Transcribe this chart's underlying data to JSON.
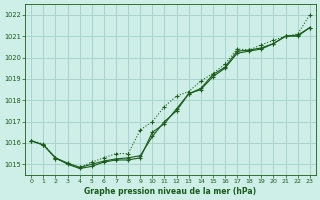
{
  "title": "Graphe pression niveau de la mer (hPa)",
  "bg_color": "#ceeee8",
  "grid_color": "#aad4ce",
  "line_color": "#1a5c1a",
  "xlim": [
    -0.5,
    23.5
  ],
  "ylim": [
    1014.5,
    1022.5
  ],
  "yticks": [
    1015,
    1016,
    1017,
    1018,
    1019,
    1020,
    1021,
    1022
  ],
  "xticks": [
    0,
    1,
    2,
    3,
    4,
    5,
    6,
    7,
    8,
    9,
    10,
    11,
    12,
    13,
    14,
    15,
    16,
    17,
    18,
    19,
    20,
    21,
    22,
    23
  ],
  "line1_x": [
    0,
    1,
    2,
    3,
    4,
    5,
    6,
    7,
    8,
    9,
    10,
    11,
    12,
    13,
    14,
    15,
    16,
    17,
    18,
    19,
    20,
    21,
    22,
    23
  ],
  "line1_y": [
    1016.1,
    1015.9,
    1015.3,
    1015.0,
    1014.8,
    1014.9,
    1015.1,
    1015.2,
    1015.2,
    1015.3,
    1016.5,
    1016.9,
    1017.6,
    1018.3,
    1018.5,
    1019.1,
    1019.5,
    1020.2,
    1020.3,
    1020.4,
    1020.65,
    1021.0,
    1021.0,
    1021.4
  ],
  "line2_x": [
    0,
    1,
    2,
    3,
    4,
    5,
    6,
    7,
    8,
    9,
    10,
    11,
    12,
    13,
    14,
    15,
    16,
    17,
    18,
    19,
    20,
    21,
    22,
    23
  ],
  "line2_y": [
    1016.1,
    1015.9,
    1015.3,
    1015.05,
    1014.85,
    1015.0,
    1015.15,
    1015.25,
    1015.3,
    1015.4,
    1016.3,
    1017.0,
    1017.5,
    1018.3,
    1018.55,
    1019.2,
    1019.55,
    1020.3,
    1020.35,
    1020.45,
    1020.65,
    1021.0,
    1021.05,
    1021.4
  ],
  "line3_x": [
    0,
    1,
    2,
    3,
    4,
    5,
    6,
    7,
    8,
    9,
    10,
    11,
    12,
    13,
    14,
    15,
    16,
    17,
    18,
    19,
    20,
    21,
    22,
    23
  ],
  "line3_y": [
    1016.1,
    1015.95,
    1015.25,
    1015.05,
    1014.85,
    1015.1,
    1015.3,
    1015.5,
    1015.5,
    1016.6,
    1017.0,
    1017.7,
    1018.2,
    1018.4,
    1018.9,
    1019.25,
    1019.7,
    1020.4,
    1020.35,
    1020.6,
    1020.8,
    1021.0,
    1021.1,
    1022.0
  ]
}
